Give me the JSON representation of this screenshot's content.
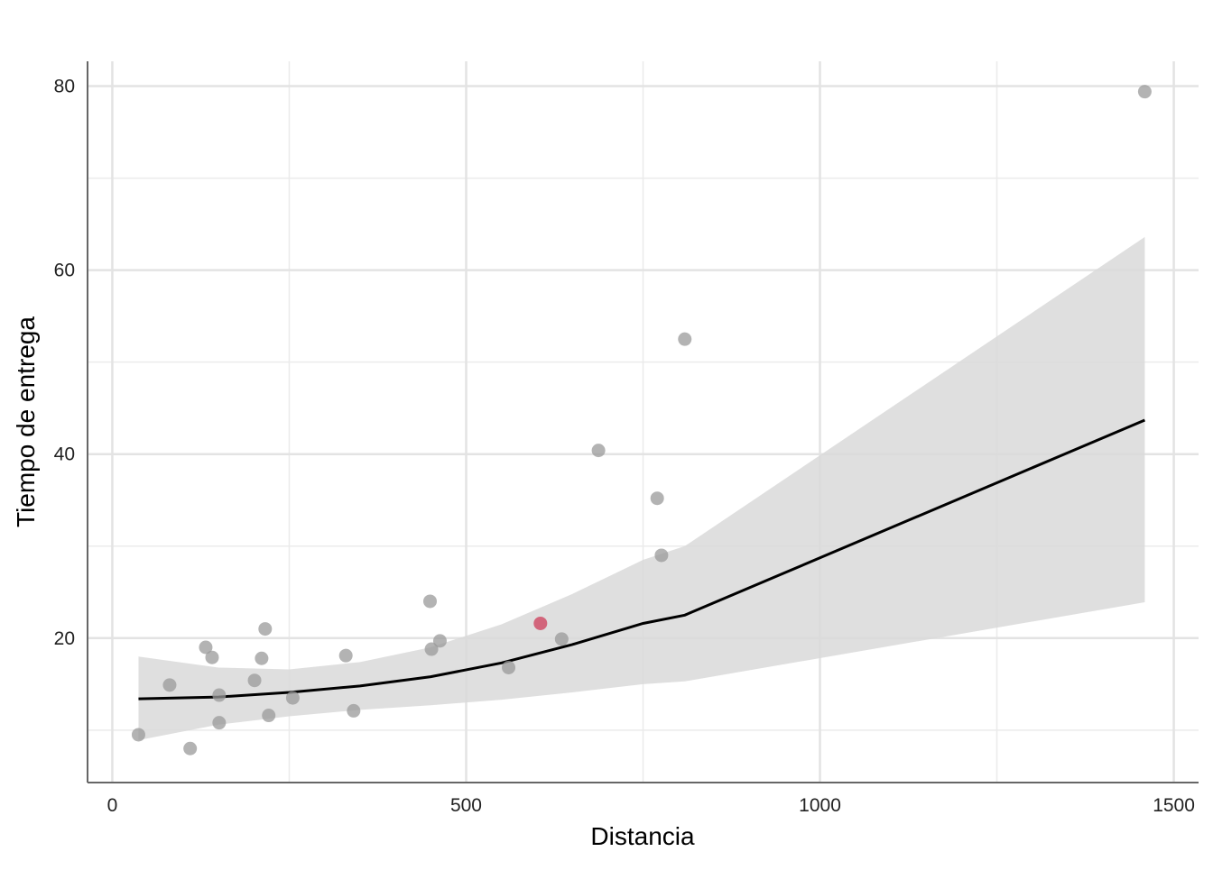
{
  "chart_data": {
    "type": "scatter",
    "title": "",
    "xlabel": "Distancia",
    "ylabel": "Tiempo de entrega",
    "xlim": [
      -35,
      1535
    ],
    "ylim": [
      4.3,
      82.7
    ],
    "x_ticks": [
      0,
      500,
      1000,
      1500
    ],
    "y_ticks": [
      20,
      40,
      60,
      80
    ],
    "grid": true,
    "colors": {
      "points": "#999999",
      "highlight": "#d0506a",
      "line": "#000000",
      "band": "#d9d9d9"
    },
    "points": [
      {
        "x": 37,
        "y": 9.5
      },
      {
        "x": 81,
        "y": 14.9
      },
      {
        "x": 110,
        "y": 8.0
      },
      {
        "x": 132,
        "y": 19.0
      },
      {
        "x": 141,
        "y": 17.9
      },
      {
        "x": 151,
        "y": 13.8
      },
      {
        "x": 151,
        "y": 10.8
      },
      {
        "x": 201,
        "y": 15.4
      },
      {
        "x": 211,
        "y": 17.8
      },
      {
        "x": 216,
        "y": 21.0
      },
      {
        "x": 221,
        "y": 11.6
      },
      {
        "x": 255,
        "y": 13.5
      },
      {
        "x": 330,
        "y": 18.1
      },
      {
        "x": 341,
        "y": 12.1
      },
      {
        "x": 449,
        "y": 24.0
      },
      {
        "x": 451,
        "y": 18.8
      },
      {
        "x": 463,
        "y": 19.7
      },
      {
        "x": 560,
        "y": 16.8
      },
      {
        "x": 605,
        "y": 21.6,
        "highlight": true
      },
      {
        "x": 635,
        "y": 19.9
      },
      {
        "x": 687,
        "y": 40.4
      },
      {
        "x": 770,
        "y": 35.2
      },
      {
        "x": 776,
        "y": 29.0
      },
      {
        "x": 809,
        "y": 52.5
      },
      {
        "x": 1459,
        "y": 79.4
      }
    ],
    "smooth": {
      "x": [
        37,
        150,
        250,
        350,
        450,
        550,
        650,
        750,
        809,
        1459
      ],
      "y": [
        13.4,
        13.6,
        14.1,
        14.8,
        15.8,
        17.3,
        19.3,
        21.6,
        22.5,
        43.7
      ],
      "upper": [
        18.0,
        16.8,
        16.6,
        17.4,
        19.0,
        21.5,
        24.8,
        28.5,
        30.0,
        63.6
      ],
      "lower": [
        8.9,
        10.6,
        11.5,
        12.2,
        12.7,
        13.3,
        14.1,
        15.0,
        15.3,
        23.9
      ]
    }
  }
}
